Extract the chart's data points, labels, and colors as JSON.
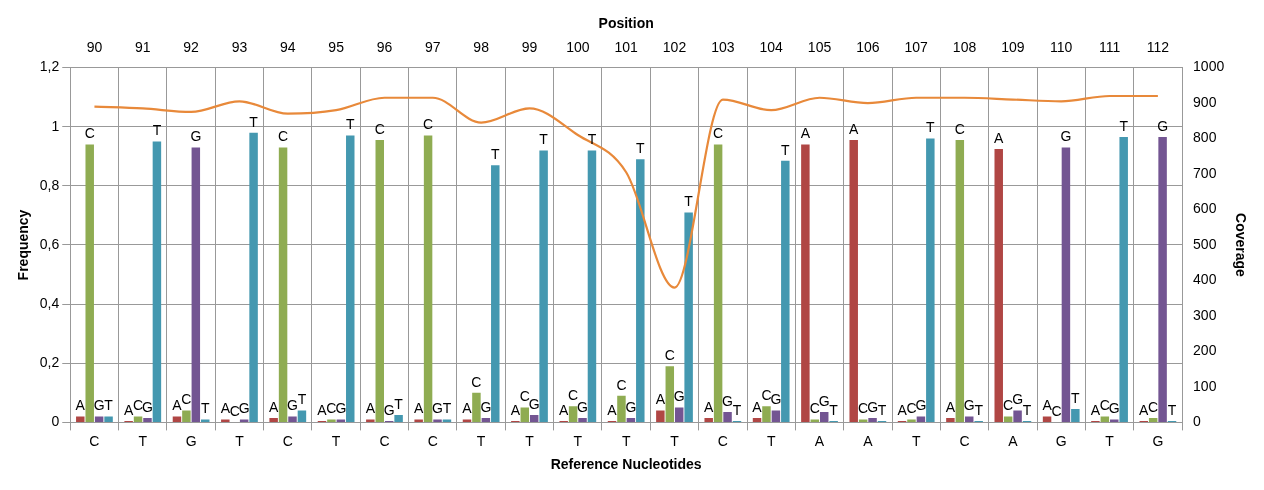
{
  "chart_data": {
    "type": "bar",
    "xlabel": "Reference Nucleotides",
    "ylabel": "Frequency",
    "y2label": "Coverage",
    "x2label": "Position",
    "categories": [
      "C",
      "T",
      "G",
      "T",
      "C",
      "T",
      "C",
      "C",
      "T",
      "T",
      "T",
      "T",
      "T",
      "C",
      "T",
      "A",
      "A",
      "T",
      "C",
      "A",
      "G",
      "T",
      "G"
    ],
    "series": [
      {
        "color": "#b04644",
        "values": [
          0.02,
          0.005,
          0.02,
          0.01,
          0.015,
          0.005,
          0.01,
          0.01,
          0.01,
          0.005,
          0.005,
          0.005,
          0.04,
          0.015,
          0.015,
          0.94,
          0.955,
          0.005,
          0.015,
          0.925,
          0.02,
          0.005,
          0.005
        ],
        "value_labels": [
          "A",
          "A",
          "A",
          "A",
          "A",
          "A",
          "A",
          "A",
          "A",
          "A",
          "A",
          "A",
          "A",
          "A",
          "A",
          "A",
          "A",
          "A",
          "A",
          "A",
          "A",
          "A",
          "A"
        ]
      },
      {
        "color": "#8fac52",
        "values": [
          0.94,
          0.02,
          0.04,
          0.0,
          0.93,
          0.01,
          0.955,
          0.97,
          0.1,
          0.05,
          0.055,
          0.09,
          0.19,
          0.94,
          0.055,
          0.01,
          0.01,
          0.01,
          0.955,
          0.02,
          0.0,
          0.02,
          0.015
        ],
        "value_labels": [
          "C",
          "C",
          "C",
          "C",
          "C",
          "C",
          "C",
          "C",
          "C",
          "C",
          "C",
          "C",
          "C",
          "C",
          "C",
          "C",
          "C",
          "C",
          "C",
          "C",
          "C",
          "C",
          "C"
        ]
      },
      {
        "color": "#735592",
        "values": [
          0.02,
          0.015,
          0.93,
          0.01,
          0.02,
          0.01,
          0.005,
          0.01,
          0.015,
          0.025,
          0.015,
          0.015,
          0.05,
          0.035,
          0.04,
          0.035,
          0.015,
          0.02,
          0.02,
          0.04,
          0.93,
          0.01,
          0.965
        ],
        "value_labels": [
          "G",
          "G",
          "G",
          "G",
          "G",
          "G",
          "G",
          "G",
          "G",
          "G",
          "G",
          "G",
          "G",
          "G",
          "G",
          "G",
          "G",
          "G",
          "G",
          "G",
          "G",
          "G",
          "G"
        ]
      },
      {
        "color": "#4498b0",
        "values": [
          0.02,
          0.95,
          0.01,
          0.98,
          0.04,
          0.97,
          0.025,
          0.01,
          0.87,
          0.92,
          0.92,
          0.89,
          0.71,
          0.005,
          0.885,
          0.005,
          0.005,
          0.96,
          0.005,
          0.005,
          0.045,
          0.965,
          0.005
        ],
        "value_labels": [
          "T",
          "T",
          "T",
          "T",
          "T",
          "T",
          "T",
          "T",
          "T",
          "T",
          "T",
          "T",
          "T",
          "T",
          "T",
          "T",
          "T",
          "T",
          "T",
          "T",
          "T",
          "T",
          "T"
        ]
      },
      {
        "type": "line",
        "axis": "y2",
        "color": "#e8893a",
        "values": [
          890,
          885,
          875,
          905,
          870,
          880,
          915,
          915,
          845,
          885,
          810,
          705,
          380,
          910,
          880,
          915,
          900,
          915,
          915,
          910,
          905,
          920,
          920
        ]
      }
    ],
    "ylim": [
      0,
      1.2
    ],
    "yticks": [
      0,
      {
        "value": 0.2,
        "label": "0,2"
      },
      {
        "value": 0.4,
        "label": "0,4"
      },
      {
        "value": 0.6,
        "label": "0,6"
      },
      {
        "value": 0.8,
        "label": "0,8"
      },
      1,
      {
        "value": 1.2,
        "label": "1,2"
      }
    ],
    "y2lim": [
      0,
      1000
    ],
    "y2ticks": [
      0,
      100,
      200,
      300,
      400,
      500,
      600,
      700,
      800,
      900,
      1000
    ],
    "x2lim": [
      89.5,
      112.5
    ],
    "x2ticks": [
      90,
      91,
      92,
      93,
      94,
      95,
      96,
      97,
      98,
      99,
      100,
      101,
      102,
      103,
      104,
      105,
      106,
      107,
      108,
      109,
      110,
      111,
      112
    ],
    "grid": true,
    "legend": false,
    "marker": "none"
  }
}
